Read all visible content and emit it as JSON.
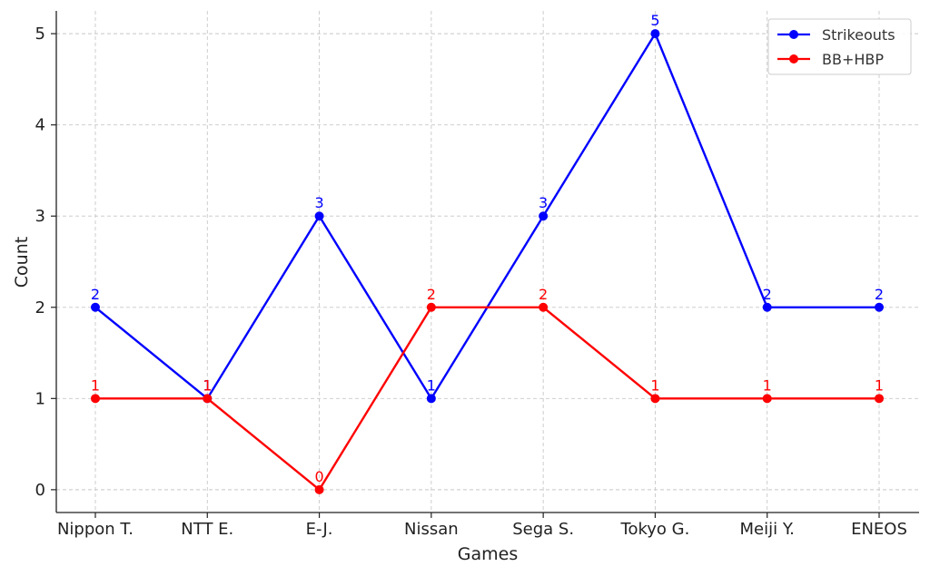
{
  "chart_data": {
    "type": "line",
    "categories": [
      "Nippon T.",
      "NTT E.",
      "E-J.",
      "Nissan",
      "Sega S.",
      "Tokyo G.",
      "Meiji Y.",
      "ENEOS"
    ],
    "series": [
      {
        "name": "Strikeouts",
        "color": "#0000ff",
        "values": [
          2,
          1,
          3,
          1,
          3,
          5,
          2,
          2
        ]
      },
      {
        "name": "BB+HBP",
        "color": "#ff0000",
        "values": [
          1,
          1,
          0,
          2,
          2,
          1,
          1,
          1
        ]
      }
    ],
    "title": "",
    "xlabel": "Games",
    "ylabel": "Count",
    "ylim": [
      -0.25,
      5.25
    ],
    "yticks": [
      0,
      1,
      2,
      3,
      4,
      5
    ],
    "grid": true,
    "legend": "top-right",
    "data_labels": true
  }
}
